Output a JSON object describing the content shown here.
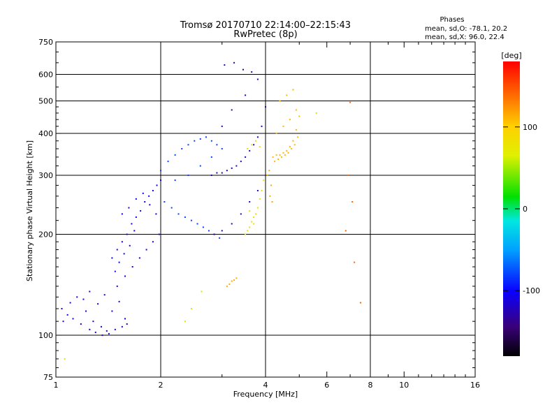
{
  "chart_data": {
    "type": "scatter",
    "title": "Tromsø 20170710 22:14:00–22:15:43",
    "subtitle": "RwPretec (8p)",
    "xlabel": "Frequency [MHz]",
    "ylabel": "Stationary phase Virtual Height [km]",
    "x_scale": "log",
    "y_scale": "log",
    "xlim": [
      1,
      16
    ],
    "ylim": [
      75,
      750
    ],
    "x_ticks": [
      1,
      2,
      4,
      6,
      8,
      10,
      16
    ],
    "x_tick_labels": [
      "1",
      "2",
      "4",
      "6",
      "8",
      "10",
      "16"
    ],
    "x_grid_lines": [
      2,
      4,
      8
    ],
    "y_ticks": [
      75,
      100,
      200,
      300,
      400,
      500,
      600,
      750
    ],
    "y_tick_labels": [
      "75",
      "100",
      "200",
      "300",
      "400",
      "500",
      "600",
      "750"
    ],
    "y_grid_lines": [
      100,
      200,
      300,
      400,
      500,
      600
    ],
    "grid": true,
    "legend": {
      "title": "Phases",
      "lines": [
        "mean, sd,O: -78.1, 20.2",
        "mean, sd,X: 96.0, 22.4"
      ],
      "placement": "top-right"
    },
    "colorbar": {
      "label": "[deg]",
      "range": [
        -180,
        180
      ],
      "ticks": [
        100,
        0,
        -100
      ],
      "tick_labels": [
        "100",
        "0",
        "-100"
      ],
      "colormap": "rainbow"
    },
    "point_size": 2,
    "series": [
      {
        "x": [
          1.04,
          1.08,
          1.12,
          1.18,
          1.25,
          1.3,
          1.36,
          1.42,
          1.48,
          1.55,
          1.6,
          1.1,
          1.15,
          1.22,
          1.28,
          1.35,
          1.4,
          1.05,
          1.2,
          1.32,
          1.45,
          1.58,
          1.25,
          1.38,
          1.52
        ],
        "y": [
          120,
          115,
          112,
          108,
          104,
          102,
          100,
          101,
          104,
          106,
          108,
          125,
          130,
          118,
          110,
          106,
          103,
          110,
          128,
          124,
          118,
          112,
          135,
          132,
          126
        ],
        "phase": -110
      },
      {
        "x": [
          1.45,
          1.5,
          1.55,
          1.6,
          1.65,
          1.7,
          1.75,
          1.8,
          1.85,
          1.9,
          1.95,
          2.0,
          1.5,
          1.58,
          1.66,
          1.74,
          1.82,
          1.9,
          1.98,
          1.55,
          1.62,
          1.7,
          1.78,
          1.86,
          1.94,
          1.48,
          1.52,
          1.57,
          1.63,
          1.68
        ],
        "y": [
          170,
          180,
          190,
          200,
          215,
          225,
          235,
          250,
          260,
          270,
          280,
          290,
          140,
          150,
          160,
          170,
          180,
          190,
          200,
          230,
          240,
          255,
          265,
          245,
          230,
          155,
          165,
          175,
          185,
          205
        ],
        "phase": -105
      },
      {
        "x": [
          2.0,
          2.1,
          2.2,
          2.3,
          2.4,
          2.5,
          2.6,
          2.7,
          2.8,
          2.9,
          3.0,
          2.05,
          2.15,
          2.25,
          2.35,
          2.45,
          2.55,
          2.65,
          2.75,
          2.85,
          2.95,
          2.2,
          2.4,
          2.6,
          2.8
        ],
        "y": [
          310,
          330,
          345,
          360,
          370,
          380,
          385,
          390,
          380,
          370,
          360,
          250,
          240,
          230,
          225,
          220,
          215,
          210,
          205,
          200,
          195,
          290,
          300,
          320,
          340
        ],
        "phase": -80
      },
      {
        "x": [
          2.8,
          2.9,
          3.0,
          3.1,
          3.2,
          3.3,
          3.4,
          3.5,
          3.6,
          3.7,
          3.8,
          3.9,
          4.0,
          2.85,
          3.0,
          3.2,
          3.4,
          3.6,
          3.8,
          3.0,
          3.2,
          3.5,
          3.8,
          3.05,
          3.25,
          3.45,
          3.65
        ],
        "y": [
          300,
          305,
          305,
          310,
          315,
          320,
          330,
          340,
          355,
          370,
          390,
          420,
          480,
          200,
          205,
          215,
          230,
          250,
          270,
          420,
          470,
          520,
          580,
          640,
          650,
          620,
          610
        ],
        "phase": -125
      },
      {
        "x": [
          3.5,
          3.55,
          3.6,
          3.65,
          3.7,
          3.75,
          3.8,
          3.85,
          3.9,
          3.95,
          3.55,
          3.65,
          3.75,
          3.85,
          3.6,
          3.7
        ],
        "y": [
          200,
          205,
          210,
          218,
          225,
          230,
          240,
          255,
          270,
          290,
          360,
          370,
          380,
          365,
          235,
          215
        ],
        "phase": 85
      },
      {
        "x": [
          4.2,
          4.3,
          4.4,
          4.5,
          4.6,
          4.7,
          4.8,
          4.9,
          5.0,
          4.25,
          4.35,
          4.45,
          4.55,
          4.65,
          4.75,
          4.85,
          4.95,
          4.4,
          4.6,
          4.8,
          4.3,
          4.5,
          4.7,
          4.9
        ],
        "y": [
          340,
          345,
          345,
          350,
          355,
          365,
          380,
          410,
          450,
          330,
          335,
          340,
          345,
          350,
          360,
          370,
          390,
          500,
          520,
          540,
          400,
          420,
          440,
          470
        ],
        "phase": 110
      },
      {
        "x": [
          3.1,
          3.15,
          3.2,
          3.25,
          3.3,
          4.05,
          4.1,
          4.15,
          4.12,
          4.18
        ],
        "y": [
          140,
          142,
          145,
          146,
          148,
          300,
          310,
          280,
          260,
          250
        ],
        "phase": 115
      },
      {
        "x": [
          6.9,
          7.1,
          7.2,
          7.5,
          6.8,
          7.0
        ],
        "y": [
          300,
          250,
          165,
          125,
          205,
          495
        ],
        "phase": 140
      },
      {
        "x": [
          5.6,
          1.06,
          2.45,
          2.62,
          2.35
        ],
        "y": [
          460,
          85,
          120,
          135,
          110
        ],
        "phase": 60
      }
    ]
  }
}
